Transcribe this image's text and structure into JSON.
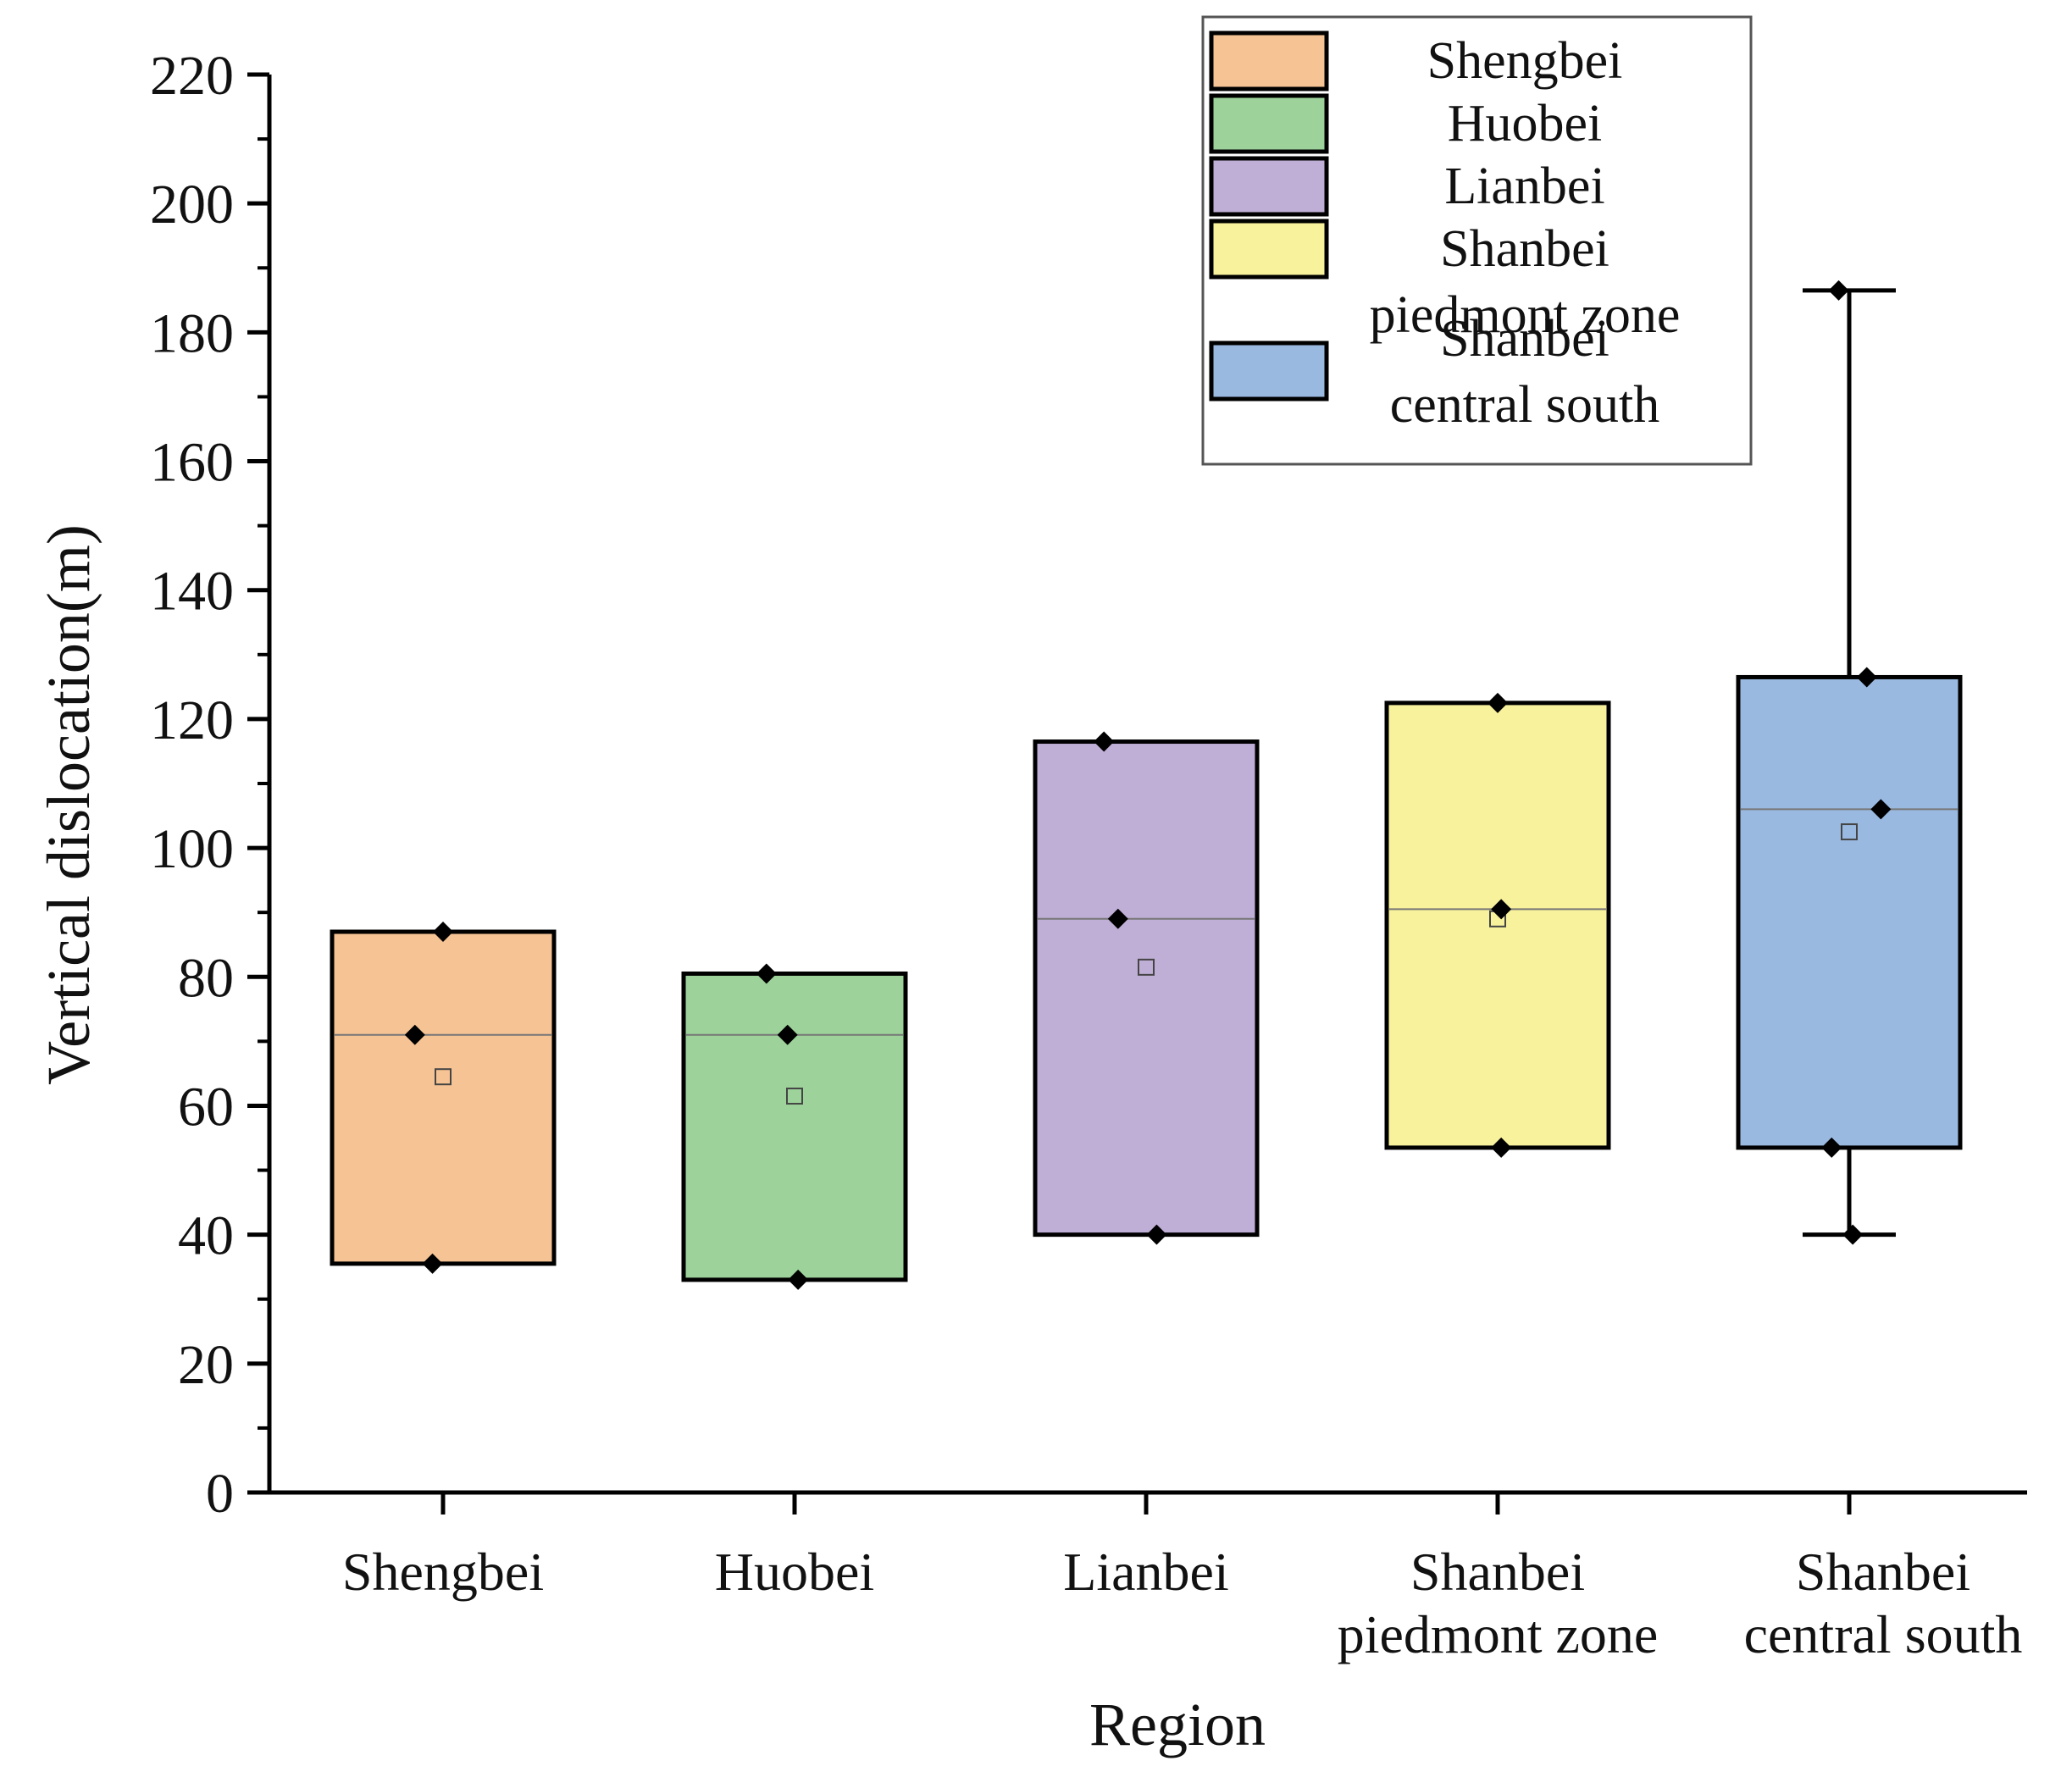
{
  "chart_data": {
    "type": "box",
    "xlabel": "Region",
    "ylabel": "Vertical dislocation(m)",
    "ylim": [
      0,
      220
    ],
    "yticks": [
      0,
      20,
      40,
      60,
      80,
      100,
      120,
      140,
      160,
      180,
      200,
      220
    ],
    "categories": [
      {
        "name": "Shengbei",
        "label_lines": [
          "Shengbei"
        ],
        "legend_lines": [
          "Shengbei"
        ],
        "color": "#f6c494",
        "whisker_low": 35.5,
        "q1": 35.5,
        "median": 71,
        "q3": 87,
        "whisker_high": 87,
        "mean": 64.5,
        "points": [
          {
            "x": 0,
            "y": 87
          },
          {
            "x": -0.08,
            "y": 71
          },
          {
            "x": -0.03,
            "y": 35.5
          }
        ]
      },
      {
        "name": "Huobei",
        "label_lines": [
          "Huobei"
        ],
        "legend_lines": [
          "Huobei"
        ],
        "color": "#9dd39b",
        "whisker_low": 33,
        "q1": 33,
        "median": 71,
        "q3": 80.5,
        "whisker_high": 80.5,
        "mean": 61.5,
        "points": [
          {
            "x": -0.08,
            "y": 80.5
          },
          {
            "x": -0.02,
            "y": 71
          },
          {
            "x": 0.01,
            "y": 33
          }
        ]
      },
      {
        "name": "Lianbei",
        "label_lines": [
          "Lianbei"
        ],
        "legend_lines": [
          "Lianbei"
        ],
        "color": "#bfaed6",
        "whisker_low": 40,
        "q1": 40,
        "median": 89,
        "q3": 116.5,
        "whisker_high": 116.5,
        "mean": 81.5,
        "points": [
          {
            "x": -0.12,
            "y": 116.5
          },
          {
            "x": -0.08,
            "y": 89
          },
          {
            "x": 0.03,
            "y": 40
          }
        ]
      },
      {
        "name": "Shanbei piedmont zone",
        "label_lines": [
          "Shanbei",
          "piedmont zone"
        ],
        "legend_lines": [
          "Shanbei",
          "piedmont zone"
        ],
        "color": "#f8f29d",
        "whisker_low": 53.5,
        "q1": 53.5,
        "median": 90.5,
        "q3": 122.5,
        "whisker_high": 122.5,
        "mean": 89,
        "points": [
          {
            "x": 0,
            "y": 122.5
          },
          {
            "x": 0.01,
            "y": 90.5
          },
          {
            "x": 0.01,
            "y": 53.5
          }
        ]
      },
      {
        "name": "Shanbei central south",
        "label_lines": [
          "Shanbei",
          "central south"
        ],
        "legend_lines": [
          "Shanbei",
          "central south"
        ],
        "color": "#9ab9e1",
        "whisker_low": 40,
        "q1": 53.5,
        "median": 106,
        "q3": 126.5,
        "whisker_high": 186.5,
        "mean": 102.5,
        "points": [
          {
            "x": -0.03,
            "y": 186.5
          },
          {
            "x": 0.05,
            "y": 126.5
          },
          {
            "x": 0.09,
            "y": 106
          },
          {
            "x": -0.05,
            "y": 53.5
          },
          {
            "x": 0.01,
            "y": 40
          }
        ]
      }
    ],
    "legend_position": "top-right"
  }
}
